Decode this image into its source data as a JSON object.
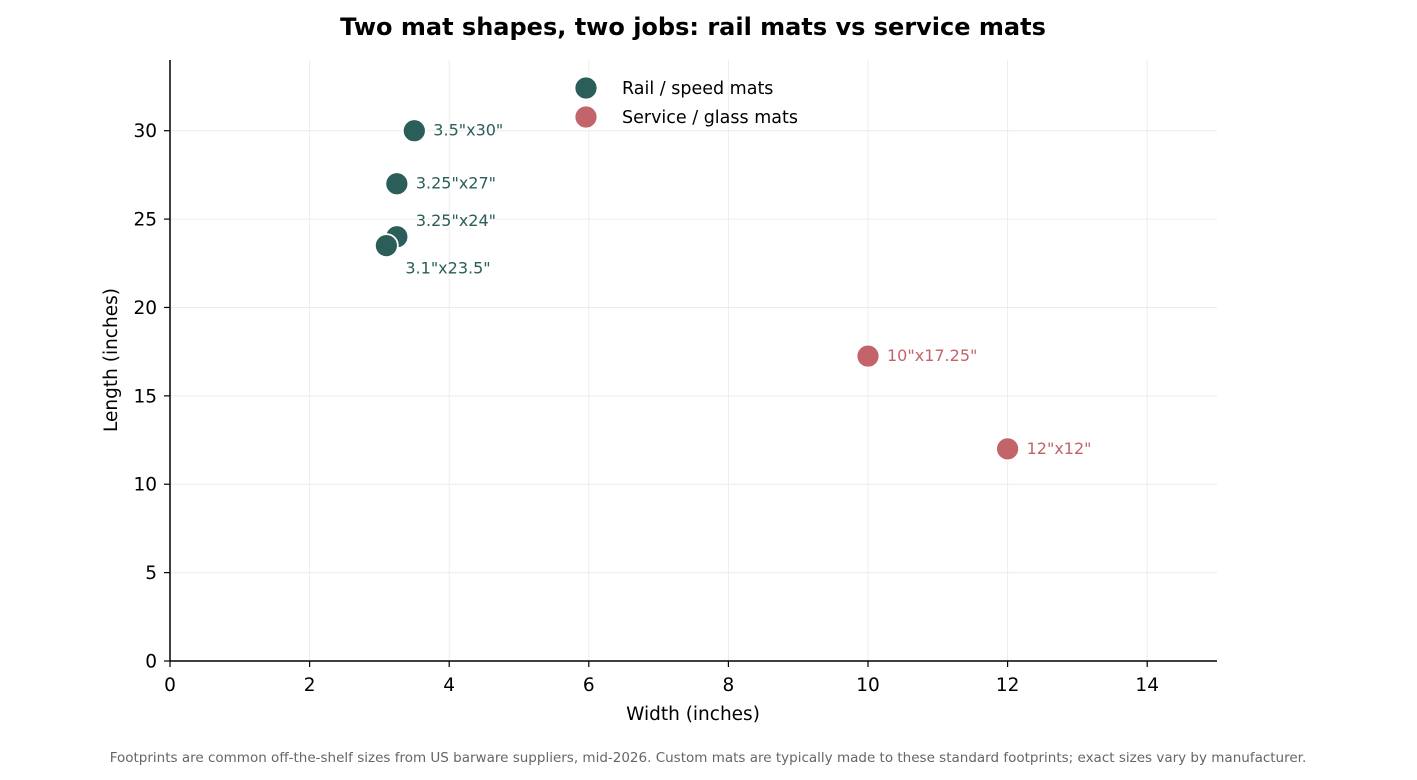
{
  "chart_data": {
    "type": "scatter",
    "title": "Two mat shapes, two jobs: rail mats vs service mats",
    "xlabel": "Width (inches)",
    "ylabel": "Length (inches)",
    "xlim": [
      0,
      15
    ],
    "ylim": [
      0,
      34
    ],
    "xticks": [
      0,
      2,
      4,
      6,
      8,
      10,
      12,
      14
    ],
    "yticks": [
      0,
      5,
      10,
      15,
      20,
      25,
      30
    ],
    "grid": true,
    "legend_position": "top-center",
    "series": [
      {
        "name": "Rail / speed mats",
        "color": "#2b5d59",
        "points": [
          {
            "x": 3.5,
            "y": 30,
            "label": "3.5\"x30\""
          },
          {
            "x": 3.25,
            "y": 27,
            "label": "3.25\"x27\""
          },
          {
            "x": 3.25,
            "y": 24,
            "label": "3.25\"x24\""
          },
          {
            "x": 3.1,
            "y": 23.5,
            "label": "3.1\"x23.5\""
          }
        ]
      },
      {
        "name": "Service / glass mats",
        "color": "#c2646a",
        "points": [
          {
            "x": 10,
            "y": 17.25,
            "label": "10\"x17.25\""
          },
          {
            "x": 12,
            "y": 12,
            "label": "12\"x12\""
          }
        ]
      }
    ],
    "footnote": "Footprints are common off-the-shelf sizes from US barware suppliers, mid-2026. Custom mats are typically made to these standard footprints; exact sizes vary by manufacturer."
  }
}
